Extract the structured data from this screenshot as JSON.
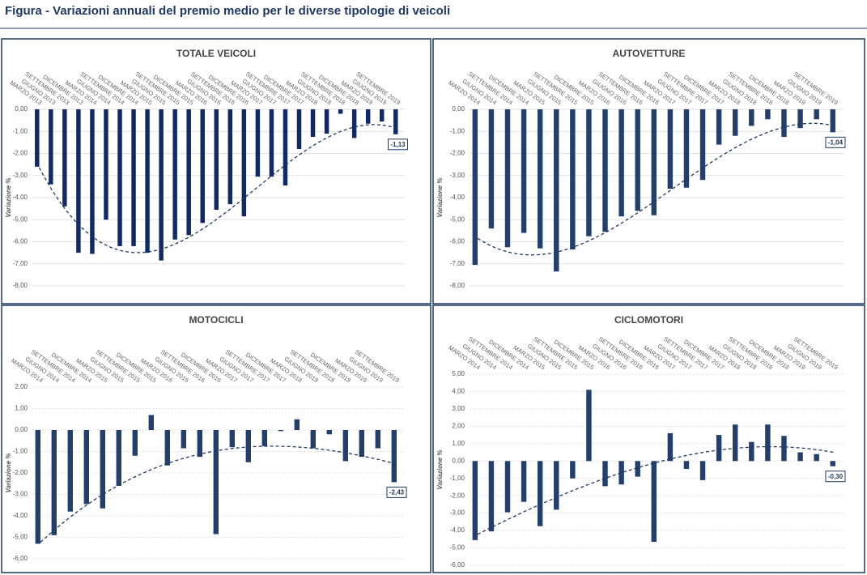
{
  "title": "Figura - Variazioni annuali del premio medio per le diverse tipologie di veicoli",
  "chart_data": [
    {
      "type": "bar",
      "title": "TOTALE VEICOLI",
      "y_label": "Variazione %",
      "color": "#0f2a66",
      "grid": true,
      "trendline": "polynomial",
      "categories": [
        "MARZO 2013",
        "GIUGNO 2013",
        "SETTEMBRE 2013",
        "DICEMBRE 2013",
        "MARZO 2014",
        "GIUGNO 2014",
        "SETTEMBRE 2014",
        "DICEMBRE 2014",
        "MARZO 2015",
        "GIUGNO 2015",
        "SETTEMBRE 2015",
        "DICEMBRE 2015",
        "MARZO 2016",
        "GIUGNO 2016",
        "SETTEMBRE 2016",
        "DICEMBRE 2016",
        "MARZO 2017",
        "GIUGNO 2017",
        "SETTEMBRE 2017",
        "DICEMBRE 2017",
        "MARZO 2018",
        "GIUGNO 2018",
        "SETTEMBRE 2018",
        "DICEMBRE 2018",
        "MARZO 2019",
        "GIUGNO 2019",
        "SETTEMBRE 2019"
      ],
      "values": [
        -2.6,
        -3.4,
        -4.4,
        -6.5,
        -6.55,
        -5.0,
        -6.2,
        -6.2,
        -6.5,
        -6.85,
        -5.9,
        -5.7,
        -5.15,
        -4.55,
        -4.3,
        -4.85,
        -3.05,
        -3.05,
        -3.45,
        -1.8,
        -1.25,
        -1.1,
        -0.2,
        -1.3,
        -0.65,
        -0.55,
        -1.13
      ],
      "value_labels": [
        null,
        null,
        null,
        null,
        null,
        null,
        null,
        null,
        null,
        null,
        null,
        null,
        null,
        null,
        null,
        null,
        null,
        null,
        null,
        null,
        null,
        null,
        null,
        null,
        null,
        null,
        "-1,13"
      ],
      "ylim": [
        -8,
        0
      ],
      "yticks": [
        {
          "value": 0,
          "label": "0,00"
        },
        {
          "value": -1,
          "label": "-1,00"
        },
        {
          "value": -2,
          "label": "-2,00"
        },
        {
          "value": -3,
          "label": "-3,00"
        },
        {
          "value": -4,
          "label": "-4,00"
        },
        {
          "value": -5,
          "label": "-5,00"
        },
        {
          "value": -6,
          "label": "-6,00"
        },
        {
          "value": -7,
          "label": "-7,00"
        },
        {
          "value": -8,
          "label": "-8,00"
        }
      ]
    },
    {
      "type": "bar",
      "title": "AUTOVETTURE",
      "y_label": "Variazione %",
      "color": "#233f6e",
      "grid": true,
      "trendline": "polynomial",
      "categories": [
        "MARZO 2014",
        "GIUGNO 2014",
        "SETTEMBRE 2014",
        "DICEMBRE 2014",
        "MARZO 2015",
        "GIUGNO 2015",
        "SETTEMBRE 2015",
        "DICEMBRE 2015",
        "MARZO 2016",
        "GIUGNO 2016",
        "SETTEMBRE 2016",
        "DICEMBRE 2016",
        "MARZO 2017",
        "GIUGNO 2017",
        "SETTEMBRE 2017",
        "DICEMBRE 2017",
        "MARZO 2018",
        "GIUGNO 2018",
        "SETTEMBRE 2018",
        "DICEMBRE 2018",
        "MARZO 2019",
        "GIUGNO 2019",
        "SETTEMBRE 2019"
      ],
      "values": [
        -7.05,
        -5.4,
        -6.25,
        -5.6,
        -6.3,
        -7.35,
        -6.35,
        -5.75,
        -5.55,
        -4.85,
        -4.6,
        -4.8,
        -3.6,
        -3.55,
        -3.2,
        -1.6,
        -1.2,
        -0.75,
        -0.45,
        -1.25,
        -0.85,
        -0.45,
        -1.04
      ],
      "value_labels": [
        null,
        null,
        null,
        null,
        null,
        null,
        null,
        null,
        null,
        null,
        null,
        null,
        null,
        null,
        null,
        null,
        null,
        null,
        null,
        null,
        null,
        null,
        "-1,04"
      ],
      "ylim": [
        -8,
        0
      ],
      "yticks": [
        {
          "value": 0,
          "label": "0,00"
        },
        {
          "value": -1,
          "label": "-1,00"
        },
        {
          "value": -2,
          "label": "-2,00"
        },
        {
          "value": -3,
          "label": "-3,00"
        },
        {
          "value": -4,
          "label": "-4,00"
        },
        {
          "value": -5,
          "label": "-5,00"
        },
        {
          "value": -6,
          "label": "-6,00"
        },
        {
          "value": -7,
          "label": "-7,00"
        },
        {
          "value": -8,
          "label": "-8,00"
        }
      ]
    },
    {
      "type": "bar",
      "title": "MOTOCICLI",
      "y_label": "Variazione %",
      "color": "#233f6e",
      "grid": true,
      "trendline": "polynomial",
      "categories": [
        "MARZO 2014",
        "GIUGNO 2014",
        "SETTEMBRE 2014",
        "DICEMBRE 2014",
        "MARZO 2015",
        "GIUGNO 2015",
        "SETTEMBRE 2015",
        "DICEMBRE 2015",
        "MARZO 2016",
        "GIUGNO 2016",
        "SETTEMBRE 2016",
        "DICEMBRE 2016",
        "MARZO 2017",
        "GIUGNO 2017",
        "SETTEMBRE 2017",
        "DICEMBRE 2017",
        "MARZO 2018",
        "GIUGNO 2018",
        "SETTEMBRE 2018",
        "DICEMBRE 2018",
        "MARZO 2019",
        "GIUGNO 2019",
        "SETTEMBRE 2019"
      ],
      "values": [
        -5.3,
        -4.9,
        -3.8,
        -3.45,
        -3.65,
        -2.6,
        -1.2,
        0.7,
        -1.65,
        -0.85,
        -1.25,
        -4.85,
        -0.8,
        -1.5,
        -0.75,
        -0.05,
        0.5,
        -0.85,
        -0.2,
        -1.45,
        -1.25,
        -0.85,
        -2.43
      ],
      "value_labels": [
        null,
        null,
        null,
        null,
        null,
        null,
        null,
        null,
        null,
        null,
        null,
        null,
        null,
        null,
        null,
        null,
        null,
        null,
        null,
        null,
        null,
        null,
        "-2,43"
      ],
      "ylim": [
        -6,
        2
      ],
      "yticks": [
        {
          "value": 2,
          "label": "2,00"
        },
        {
          "value": 1,
          "label": "1,00"
        },
        {
          "value": 0,
          "label": "0,00"
        },
        {
          "value": -1,
          "label": "-1,00"
        },
        {
          "value": -2,
          "label": "-2,00"
        },
        {
          "value": -3,
          "label": "-3,00"
        },
        {
          "value": -4,
          "label": "-4,00"
        },
        {
          "value": -5,
          "label": "-5,00"
        },
        {
          "value": -6,
          "label": "-6,00"
        }
      ]
    },
    {
      "type": "bar",
      "title": "CICLOMOTORI",
      "y_label": "Variazione %",
      "color": "#233f6e",
      "grid": true,
      "trendline": "polynomial",
      "categories": [
        "MARZO 2014",
        "GIUGNO 2014",
        "SETTEMBRE 2014",
        "DICEMBRE 2014",
        "MARZO 2015",
        "GIUGNO 2015",
        "SETTEMBRE 2015",
        "DICEMBRE 2015",
        "MARZO 2016",
        "GIUGNO 2016",
        "SETTEMBRE 2016",
        "DICEMBRE 2016",
        "MARZO 2017",
        "GIUGNO 2017",
        "SETTEMBRE 2017",
        "DICEMBRE 2017",
        "MARZO 2018",
        "GIUGNO 2018",
        "SETTEMBRE 2018",
        "DICEMBRE 2018",
        "MARZO 2019",
        "GIUGNO 2019",
        "SETTEMBRE 2019"
      ],
      "values": [
        -4.55,
        -4.05,
        -2.95,
        -2.35,
        -3.75,
        -2.8,
        -1.0,
        4.1,
        -1.45,
        -1.35,
        -0.9,
        -4.65,
        1.6,
        -0.45,
        -1.1,
        1.5,
        2.1,
        1.1,
        2.1,
        1.45,
        0.5,
        0.4,
        -0.3
      ],
      "value_labels": [
        null,
        null,
        null,
        null,
        null,
        null,
        null,
        null,
        null,
        null,
        null,
        null,
        null,
        null,
        null,
        null,
        null,
        null,
        null,
        null,
        null,
        null,
        "-0,30"
      ],
      "ylim": [
        -6,
        5
      ],
      "yticks": [
        {
          "value": 5,
          "label": "5,00"
        },
        {
          "value": 4,
          "label": "4,00"
        },
        {
          "value": 3,
          "label": "3,00"
        },
        {
          "value": 2,
          "label": "2,00"
        },
        {
          "value": 1,
          "label": "1,00"
        },
        {
          "value": 0,
          "label": "0,00"
        },
        {
          "value": -1,
          "label": "-1,00"
        },
        {
          "value": -2,
          "label": "-2,00"
        },
        {
          "value": -3,
          "label": "-3,00"
        },
        {
          "value": -4,
          "label": "-4,00"
        },
        {
          "value": -5,
          "label": "-5,00"
        },
        {
          "value": -6,
          "label": "-6,00"
        }
      ]
    }
  ]
}
